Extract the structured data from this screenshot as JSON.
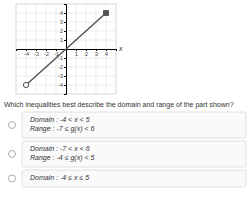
{
  "chart_data": {
    "type": "line",
    "title": "Which inequalities best describe the domain and range of the part shown?",
    "x": [
      -4,
      4
    ],
    "values": [
      -4,
      4
    ],
    "color": "#555555",
    "xlabel": "x",
    "xlim": [
      -5,
      5
    ],
    "ylim": [
      -5,
      5
    ],
    "xticks": [
      -4,
      -3,
      -2,
      -1,
      1,
      2,
      3,
      4
    ],
    "yticks": [
      -4,
      -3,
      -2,
      -1,
      1,
      2,
      3,
      4
    ],
    "grid": true,
    "annotations": [
      [
        "Domain :  -4 < x < 5",
        "Range :  -7 ≤ g(x) < 6"
      ],
      [
        "Domain :  -7 < x < 6",
        "Range :  -4 ≤ g(x) < 5"
      ],
      [
        "Domain :  -4 ≤ x ≤ 5"
      ]
    ]
  }
}
